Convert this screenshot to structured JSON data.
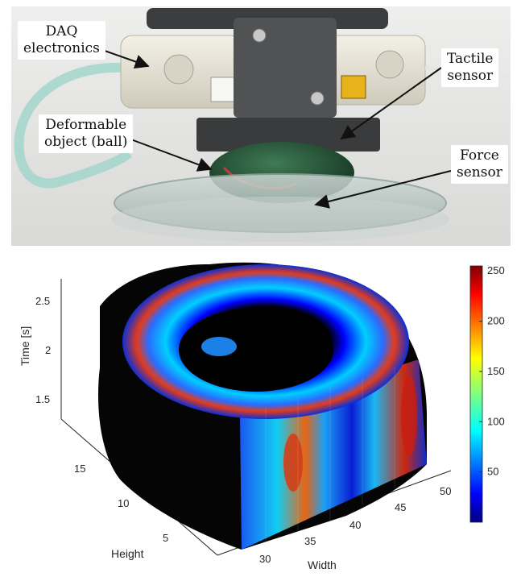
{
  "photo": {
    "labels": {
      "daq_line1": "DAQ",
      "daq_line2": "electronics",
      "deform_line1": "Deformable",
      "deform_line2": "object (ball)",
      "tactile_line1": "Tactile",
      "tactile_line2": "sensor",
      "force_line1": "Force",
      "force_line2": "sensor"
    }
  },
  "chart_data": {
    "type": "surface3d",
    "title": "",
    "xlabel": "Width",
    "ylabel": "Height",
    "zlabel": "Time [s]",
    "x_ticks": [
      "30",
      "35",
      "40",
      "45",
      "50"
    ],
    "y_ticks": [
      "5",
      "10",
      "15"
    ],
    "z_ticks": [
      "1.5",
      "2",
      "2.5"
    ],
    "colorbar": {
      "ticks": [
        "50",
        "100",
        "150",
        "200",
        "250"
      ],
      "range": [
        0,
        255
      ],
      "colormap": "jet"
    }
  }
}
